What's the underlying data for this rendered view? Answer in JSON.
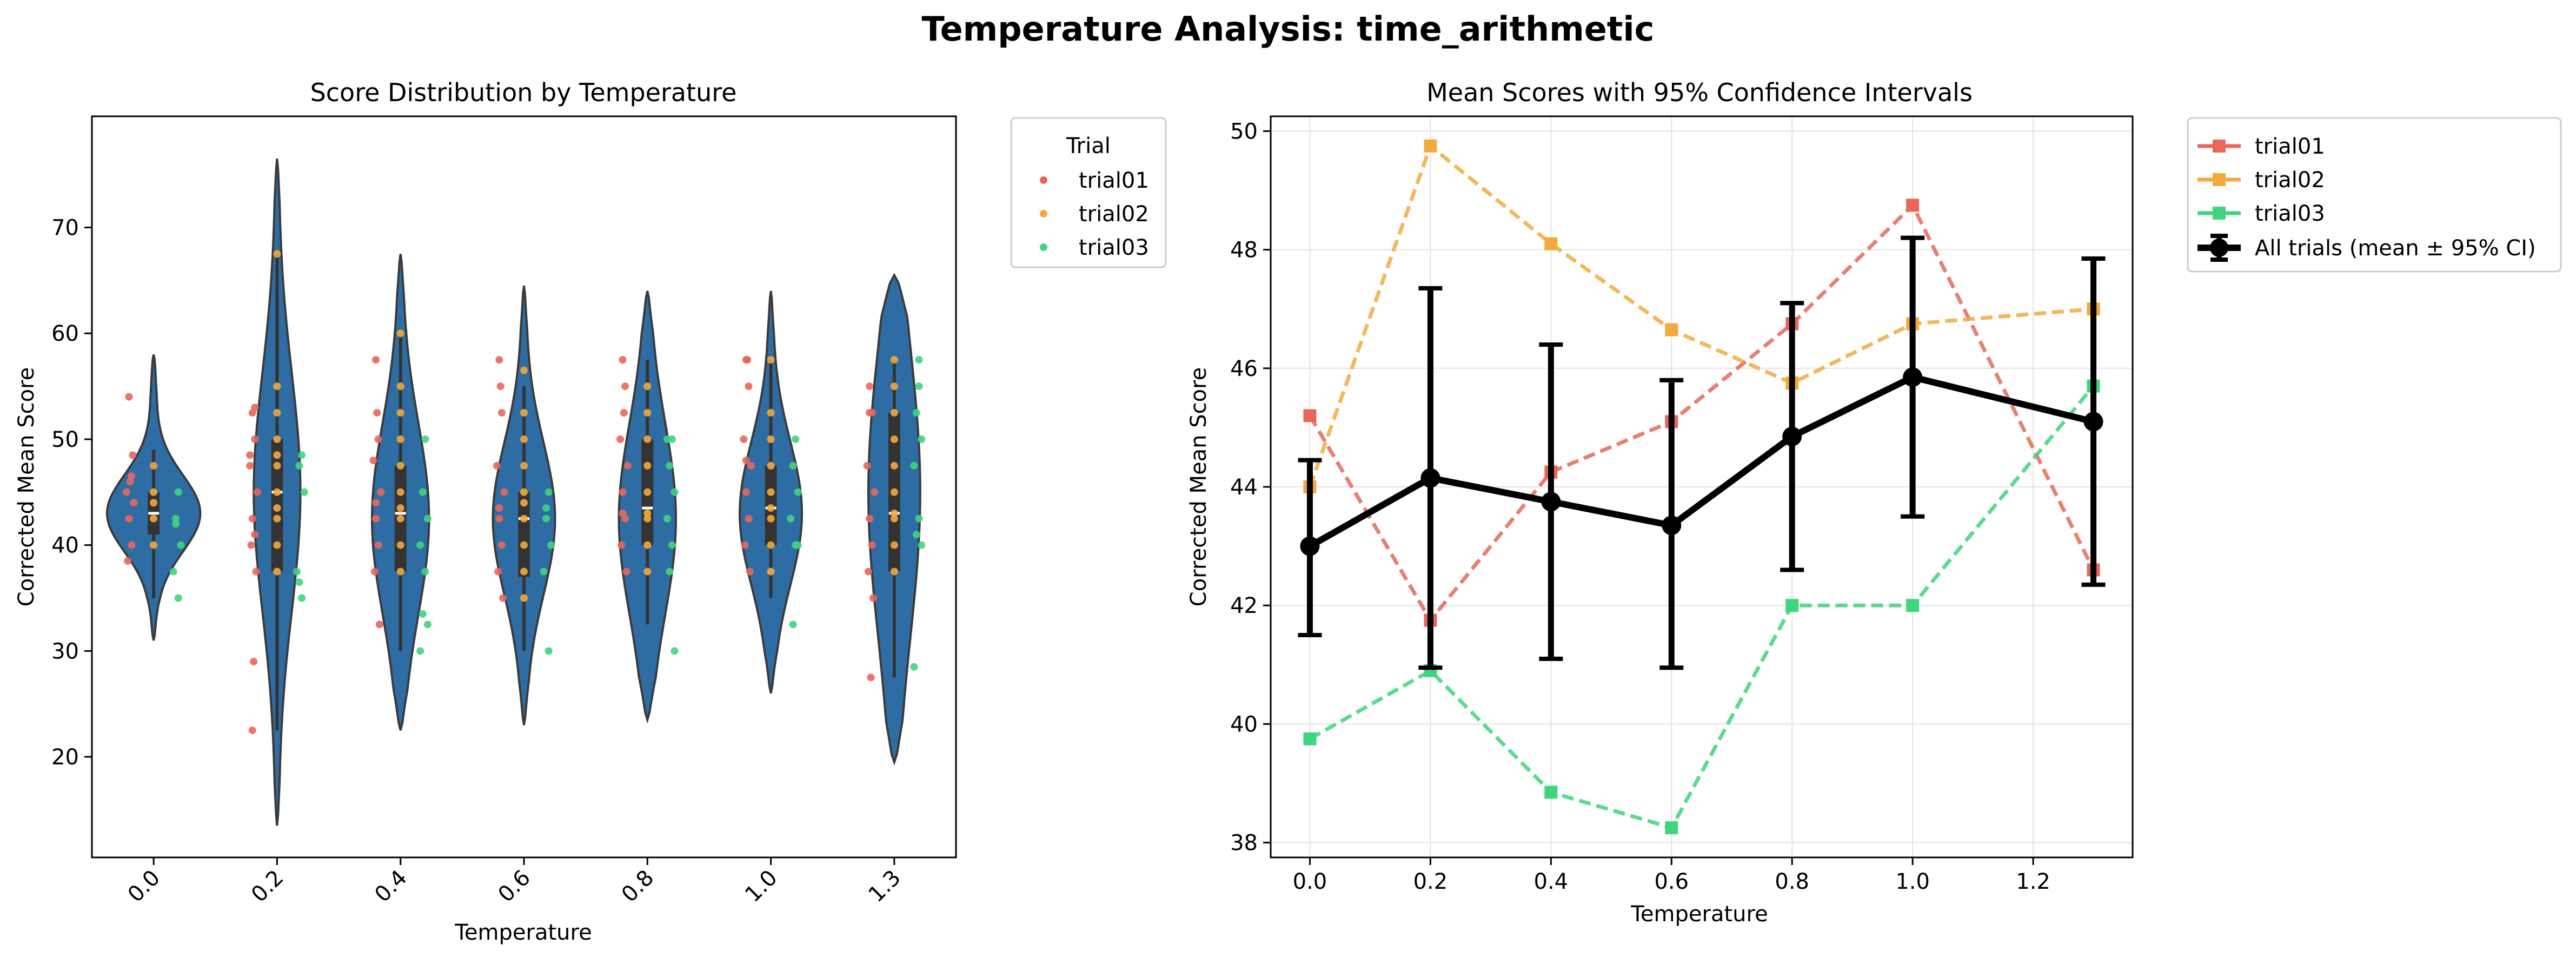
{
  "figure": {
    "title": "Temperature Analysis: time_arithmetic"
  },
  "colors": {
    "trial01": "#e8675b",
    "trial02": "#f2aa3c",
    "trial03": "#40d47e",
    "violin": "#2e6da4",
    "violin_edge": "#3a3a3a",
    "mean_line": "#000000"
  },
  "chart_data": [
    {
      "type": "violin",
      "title": "Score Distribution by Temperature",
      "xlabel": "Temperature",
      "ylabel": "Corrected Mean Score",
      "categories": [
        "0.0",
        "0.2",
        "0.4",
        "0.6",
        "0.8",
        "1.0",
        "1.3"
      ],
      "ylim": [
        10.5,
        80.5
      ],
      "yticks": [
        20,
        30,
        40,
        50,
        60,
        70
      ],
      "legend": {
        "title": "Trial",
        "position": "outside-top-right",
        "entries": [
          "trial01",
          "trial02",
          "trial03"
        ]
      },
      "violins": [
        {
          "min": 31,
          "max": 58,
          "q1": 41,
          "median": 43,
          "q3": 45,
          "wlo": 35,
          "whi": 49,
          "peak": 43,
          "width": 0.9
        },
        {
          "min": 13.5,
          "max": 76.5,
          "q1": 37.5,
          "median": 45,
          "q3": 50,
          "wlo": 22.5,
          "whi": 67.5,
          "peak": 45,
          "width": 0.45
        },
        {
          "min": 22.5,
          "max": 67.5,
          "q1": 37.5,
          "median": 43,
          "q3": 47.5,
          "wlo": 30,
          "whi": 60,
          "peak": 42.5,
          "width": 0.55
        },
        {
          "min": 23,
          "max": 64.5,
          "q1": 37,
          "median": 42.5,
          "q3": 45,
          "wlo": 30,
          "whi": 55,
          "peak": 42.5,
          "width": 0.6
        },
        {
          "min": 23.5,
          "max": 64,
          "q1": 40,
          "median": 43.5,
          "q3": 50,
          "wlo": 32.5,
          "whi": 57.5,
          "peak": 42.5,
          "width": 0.55
        },
        {
          "min": 26,
          "max": 64,
          "q1": 40,
          "median": 43.5,
          "q3": 47.5,
          "wlo": 35,
          "whi": 57.5,
          "peak": 43,
          "width": 0.6
        },
        {
          "min": 19.5,
          "max": 65.5,
          "q1": 37.5,
          "median": 43,
          "q3": 52.5,
          "wlo": 27.5,
          "whi": 57.5,
          "peak": 45,
          "width": 0.5
        }
      ],
      "points": {
        "trial01": [
          [
            [
              -0.2,
              54
            ],
            [
              -0.18,
              46.5
            ],
            [
              -0.22,
              45
            ],
            [
              -0.16,
              44
            ],
            [
              -0.2,
              42.5
            ],
            [
              -0.18,
              40
            ],
            [
              -0.21,
              38.5
            ],
            [
              -0.17,
              48.5
            ],
            [
              -0.19,
              46
            ]
          ],
          [
            [
              -0.2,
              52.5
            ],
            [
              -0.18,
              50
            ],
            [
              -0.22,
              48.5
            ],
            [
              -0.16,
              45
            ],
            [
              -0.2,
              42.5
            ],
            [
              -0.18,
              41
            ],
            [
              -0.21,
              40
            ],
            [
              -0.17,
              37.5
            ],
            [
              -0.19,
              29
            ],
            [
              -0.2,
              22.5
            ],
            [
              -0.22,
              47.5
            ],
            [
              -0.18,
              53
            ]
          ],
          [
            [
              -0.2,
              57.5
            ],
            [
              -0.18,
              50
            ],
            [
              -0.22,
              48
            ],
            [
              -0.16,
              45
            ],
            [
              -0.2,
              42.5
            ],
            [
              -0.18,
              40
            ],
            [
              -0.21,
              37.5
            ],
            [
              -0.17,
              32.5
            ],
            [
              -0.19,
              52.5
            ],
            [
              -0.2,
              44
            ]
          ],
          [
            [
              -0.2,
              57.5
            ],
            [
              -0.18,
              52.5
            ],
            [
              -0.22,
              47.5
            ],
            [
              -0.16,
              45
            ],
            [
              -0.2,
              42.5
            ],
            [
              -0.18,
              40
            ],
            [
              -0.21,
              37.5
            ],
            [
              -0.17,
              35
            ],
            [
              -0.19,
              55
            ],
            [
              -0.2,
              43.5
            ]
          ],
          [
            [
              -0.2,
              57.5
            ],
            [
              -0.18,
              55
            ],
            [
              -0.22,
              50
            ],
            [
              -0.16,
              47.5
            ],
            [
              -0.2,
              45
            ],
            [
              -0.18,
              42.5
            ],
            [
              -0.21,
              40
            ],
            [
              -0.17,
              37.5
            ],
            [
              -0.19,
              52.5
            ],
            [
              -0.2,
              43
            ]
          ],
          [
            [
              -0.2,
              57.5
            ],
            [
              -0.18,
              55
            ],
            [
              -0.22,
              50
            ],
            [
              -0.16,
              47.5
            ],
            [
              -0.2,
              45
            ],
            [
              -0.18,
              42.5
            ],
            [
              -0.21,
              40
            ],
            [
              -0.17,
              37.5
            ],
            [
              -0.19,
              57.5
            ],
            [
              -0.2,
              48
            ]
          ],
          [
            [
              -0.2,
              55
            ],
            [
              -0.18,
              52.5
            ],
            [
              -0.22,
              47.5
            ],
            [
              -0.16,
              45
            ],
            [
              -0.2,
              42.5
            ],
            [
              -0.18,
              40
            ],
            [
              -0.21,
              37.5
            ],
            [
              -0.17,
              35
            ],
            [
              -0.19,
              27.5
            ],
            [
              -0.2,
              52.5
            ]
          ]
        ],
        "trial02": [
          [
            [
              0,
              47.5
            ],
            [
              0,
              45
            ],
            [
              0,
              42.5
            ],
            [
              0,
              40
            ],
            [
              0,
              44
            ]
          ],
          [
            [
              0,
              67.5
            ],
            [
              0,
              55
            ],
            [
              0,
              52.5
            ],
            [
              0,
              50
            ],
            [
              0,
              47.5
            ],
            [
              0,
              45
            ],
            [
              0,
              42.5
            ],
            [
              0,
              40
            ],
            [
              0,
              37.5
            ],
            [
              0,
              48.5
            ],
            [
              0,
              43.5
            ]
          ],
          [
            [
              0,
              60
            ],
            [
              0,
              55
            ],
            [
              0,
              52.5
            ],
            [
              0,
              50
            ],
            [
              0,
              47.5
            ],
            [
              0,
              45
            ],
            [
              0,
              43.5
            ],
            [
              0,
              42.5
            ],
            [
              0,
              40
            ],
            [
              0,
              37.5
            ]
          ],
          [
            [
              0,
              56.5
            ],
            [
              0,
              52.5
            ],
            [
              0,
              50
            ],
            [
              0,
              47.5
            ],
            [
              0,
              45
            ],
            [
              0,
              42.5
            ],
            [
              0,
              40
            ],
            [
              0,
              37.5
            ],
            [
              0,
              35
            ],
            [
              0,
              44
            ]
          ],
          [
            [
              0,
              55
            ],
            [
              0,
              52.5
            ],
            [
              0,
              50
            ],
            [
              0,
              47.5
            ],
            [
              0,
              45
            ],
            [
              0,
              43
            ],
            [
              0,
              42.5
            ],
            [
              0,
              40
            ],
            [
              0,
              37.5
            ]
          ],
          [
            [
              0,
              57.5
            ],
            [
              0,
              52.5
            ],
            [
              0,
              50
            ],
            [
              0,
              47.5
            ],
            [
              0,
              45
            ],
            [
              0,
              42.5
            ],
            [
              0,
              40
            ],
            [
              0,
              37.5
            ],
            [
              0,
              43.5
            ]
          ],
          [
            [
              0,
              57.5
            ],
            [
              0,
              55
            ],
            [
              0,
              52.5
            ],
            [
              0,
              50
            ],
            [
              0,
              47.5
            ],
            [
              0,
              45
            ],
            [
              0,
              42.5
            ],
            [
              0,
              40
            ],
            [
              0,
              37.5
            ],
            [
              0,
              43
            ]
          ]
        ],
        "trial03": [
          [
            [
              0.2,
              45
            ],
            [
              0.18,
              42.5
            ],
            [
              0.22,
              40
            ],
            [
              0.16,
              37.5
            ],
            [
              0.2,
              35
            ],
            [
              0.18,
              42
            ]
          ],
          [
            [
              0.2,
              48.5
            ],
            [
              0.18,
              47.5
            ],
            [
              0.22,
              45
            ],
            [
              0.16,
              37.5
            ],
            [
              0.2,
              35
            ],
            [
              0.18,
              36.5
            ]
          ],
          [
            [
              0.2,
              50
            ],
            [
              0.18,
              45
            ],
            [
              0.22,
              42.5
            ],
            [
              0.16,
              40
            ],
            [
              0.2,
              37.5
            ],
            [
              0.18,
              33.5
            ],
            [
              0.22,
              32.5
            ],
            [
              0.16,
              30
            ]
          ],
          [
            [
              0.2,
              45
            ],
            [
              0.18,
              42.5
            ],
            [
              0.22,
              40
            ],
            [
              0.16,
              37.5
            ],
            [
              0.2,
              30
            ],
            [
              0.18,
              43.5
            ]
          ],
          [
            [
              0.2,
              50
            ],
            [
              0.18,
              47.5
            ],
            [
              0.22,
              45
            ],
            [
              0.16,
              42.5
            ],
            [
              0.2,
              40
            ],
            [
              0.18,
              37.5
            ],
            [
              0.22,
              30
            ],
            [
              0.16,
              50
            ]
          ],
          [
            [
              0.2,
              50
            ],
            [
              0.18,
              47.5
            ],
            [
              0.22,
              45
            ],
            [
              0.16,
              42.5
            ],
            [
              0.2,
              40
            ],
            [
              0.18,
              32.5
            ],
            [
              0.22,
              40
            ]
          ],
          [
            [
              0.2,
              57.5
            ],
            [
              0.18,
              52.5
            ],
            [
              0.22,
              50
            ],
            [
              0.16,
              47.5
            ],
            [
              0.2,
              42.5
            ],
            [
              0.18,
              41
            ],
            [
              0.22,
              40
            ],
            [
              0.16,
              28.5
            ],
            [
              0.2,
              55
            ]
          ]
        ]
      }
    },
    {
      "type": "line",
      "title": "Mean Scores with 95% Confidence Intervals",
      "xlabel": "Temperature",
      "ylabel": "Corrected Mean Score",
      "x": [
        0.0,
        0.2,
        0.4,
        0.6,
        0.8,
        1.0,
        1.3
      ],
      "xlim": [
        -0.065,
        1.365
      ],
      "ylim": [
        37.75,
        50.25
      ],
      "xticks": [
        0.0,
        0.2,
        0.4,
        0.6,
        0.8,
        1.0,
        1.2
      ],
      "yticks": [
        38,
        40,
        42,
        44,
        46,
        48,
        50
      ],
      "grid": true,
      "legend": {
        "position": "outside-top-right"
      },
      "series": [
        {
          "name": "trial01",
          "values": [
            45.2,
            41.75,
            44.25,
            45.1,
            46.75,
            48.75,
            42.6
          ],
          "style": "dashed",
          "marker": "square"
        },
        {
          "name": "trial02",
          "values": [
            44.0,
            49.75,
            48.1,
            46.65,
            45.75,
            46.75,
            47.0
          ],
          "style": "dashed",
          "marker": "square"
        },
        {
          "name": "trial03",
          "values": [
            39.75,
            40.9,
            38.85,
            38.25,
            42.0,
            42.0,
            45.7
          ],
          "style": "dashed",
          "marker": "square"
        },
        {
          "name": "All trials (mean ± 95% CI)",
          "values": [
            43.0,
            44.15,
            43.75,
            43.35,
            44.85,
            45.85,
            45.1
          ],
          "ci_low": [
            41.5,
            40.95,
            41.1,
            40.95,
            42.6,
            43.5,
            42.35
          ],
          "ci_high": [
            44.45,
            47.35,
            46.4,
            45.8,
            47.1,
            48.2,
            47.85
          ],
          "style": "solid",
          "marker": "circle"
        }
      ]
    }
  ]
}
